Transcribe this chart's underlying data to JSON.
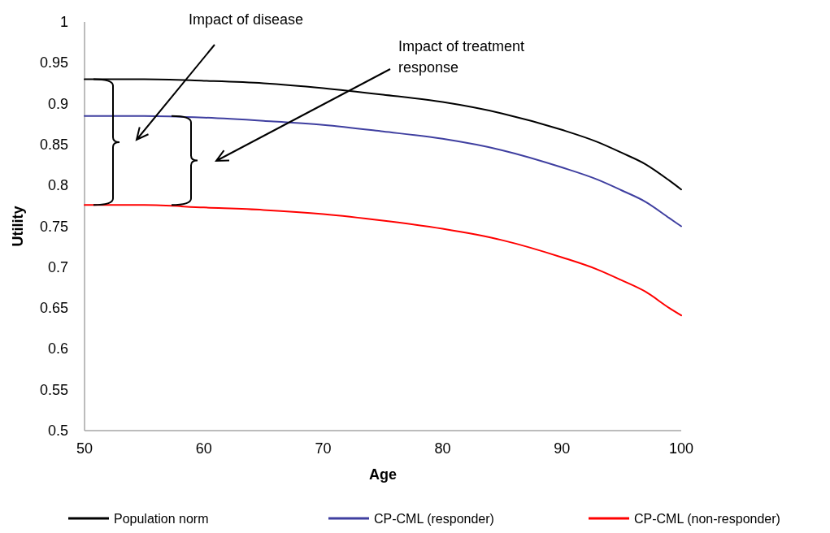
{
  "chart_data": {
    "type": "line",
    "xlabel": "Age",
    "ylabel": "Utility",
    "x": [
      50,
      55,
      60,
      65,
      70,
      75,
      80,
      85,
      90,
      93,
      95,
      97,
      99,
      100
    ],
    "xlim": [
      50,
      100
    ],
    "xticks": [
      50,
      60,
      70,
      80,
      90,
      100
    ],
    "ylim": [
      0.5,
      1
    ],
    "yticks": [
      0.5,
      0.55,
      0.6,
      0.65,
      0.7,
      0.75,
      0.8,
      0.85,
      0.9,
      0.95,
      1
    ],
    "grid": false,
    "legend": "bottom",
    "marker": "none",
    "line_style": "solid",
    "annotations": [
      "Impact of disease",
      "Impact of treatment response"
    ],
    "series": [
      {
        "name": "Population norm",
        "color": "#000000",
        "values": [
          0.93,
          0.93,
          0.928,
          0.925,
          0.919,
          0.911,
          0.902,
          0.888,
          0.868,
          0.853,
          0.84,
          0.826,
          0.806,
          0.795
        ]
      },
      {
        "name": "CP-CML (responder)",
        "color": "#3f3fa0",
        "values": [
          0.885,
          0.885,
          0.883,
          0.879,
          0.874,
          0.866,
          0.857,
          0.843,
          0.822,
          0.807,
          0.794,
          0.78,
          0.76,
          0.75
        ]
      },
      {
        "name": "CP-CML (non-responder)",
        "color": "#ff0000",
        "values": [
          0.776,
          0.776,
          0.773,
          0.77,
          0.765,
          0.757,
          0.747,
          0.733,
          0.712,
          0.697,
          0.684,
          0.67,
          0.65,
          0.641
        ]
      }
    ]
  }
}
